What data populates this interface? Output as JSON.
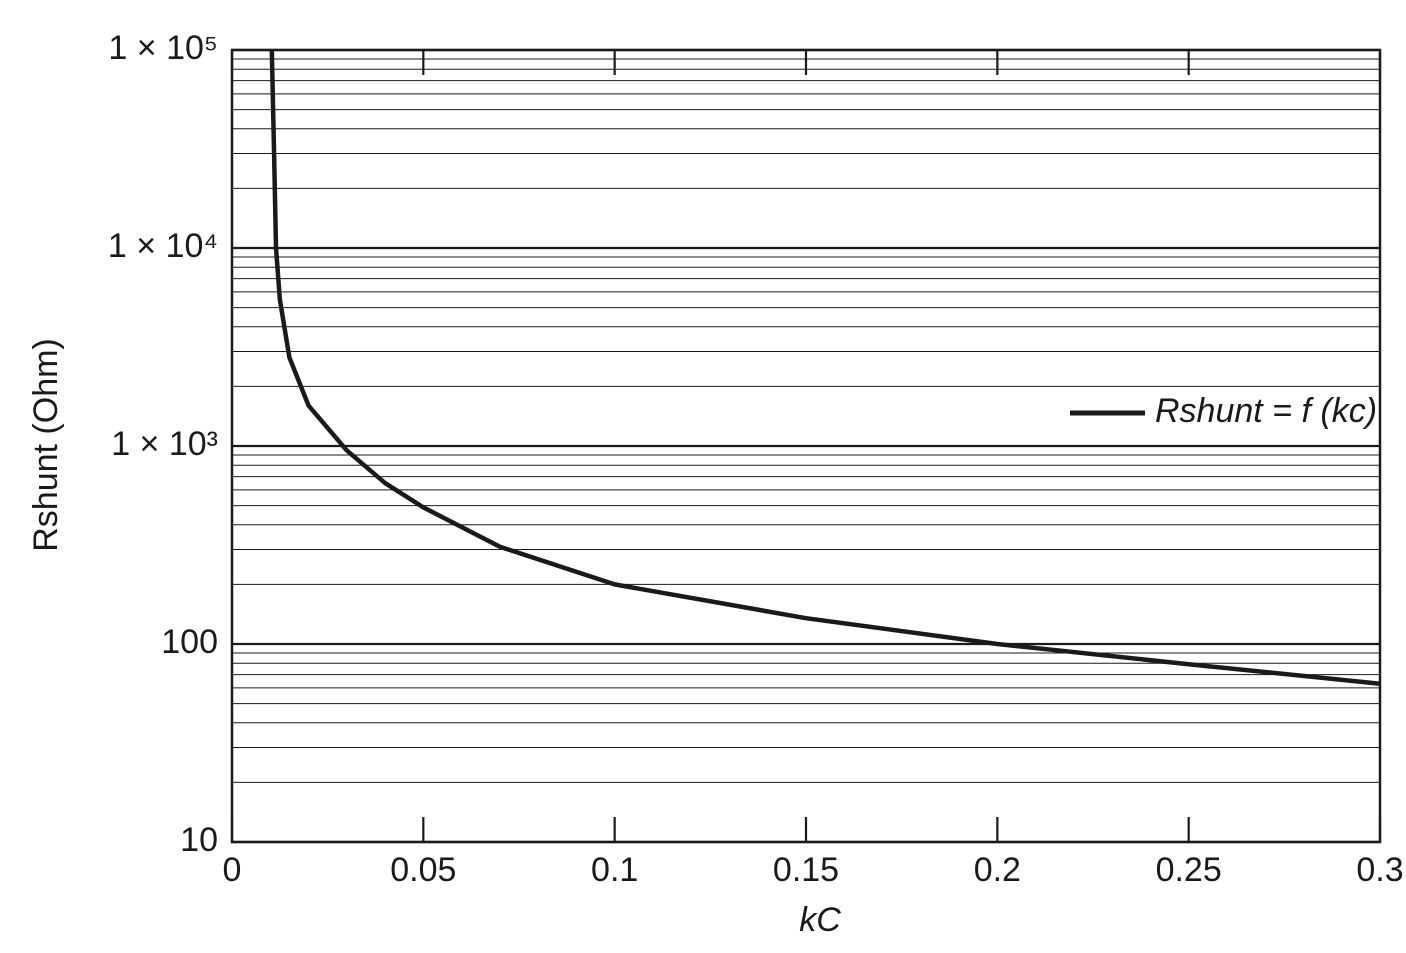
{
  "chart_data": {
    "type": "line",
    "x_label": "kC",
    "y_label": "Rshunt (Ohm)",
    "series": [
      {
        "name": "Rshunt = f (kc)",
        "color": "#1a1a1a",
        "x": [
          0.0104,
          0.011,
          0.0115,
          0.0125,
          0.015,
          0.02,
          0.03,
          0.04,
          0.05,
          0.07,
          0.1,
          0.15,
          0.2,
          0.25,
          0.3
        ],
        "values": [
          100000,
          30000,
          10000,
          5500,
          2800,
          1600,
          950,
          650,
          490,
          310,
          200,
          135,
          100,
          79,
          63
        ]
      }
    ],
    "xlim": [
      0,
      0.3
    ],
    "xticks": [
      0,
      0.05,
      0.1,
      0.15,
      0.2,
      0.25,
      0.3
    ],
    "ylim": [
      10,
      100000
    ],
    "log_y": true,
    "yticks": [
      10,
      100,
      {
        "value": 1000,
        "label": "1 × 10³"
      },
      {
        "value": 10000,
        "label": "1 × 10⁴"
      },
      {
        "value": 100000,
        "label": "1 × 10⁵"
      }
    ],
    "yminor": [
      20,
      30,
      40,
      50,
      60,
      70,
      80,
      90,
      200,
      300,
      400,
      500,
      600,
      700,
      800,
      900,
      2000,
      3000,
      4000,
      5000,
      6000,
      7000,
      8000,
      9000,
      20000,
      30000,
      40000,
      50000,
      60000,
      70000,
      80000,
      90000
    ],
    "grid": true,
    "legend": "right"
  }
}
